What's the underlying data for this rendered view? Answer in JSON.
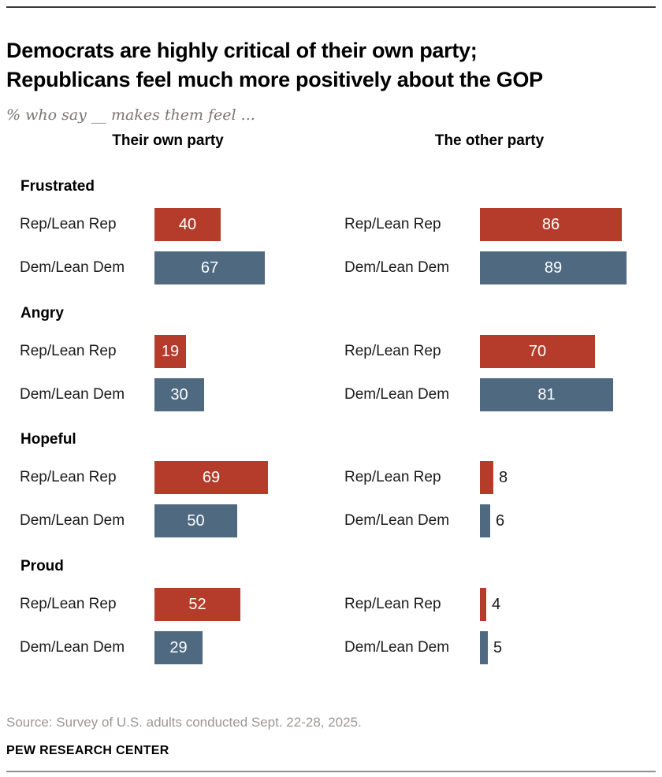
{
  "page": {
    "title_line1": "Democrats are highly critical of their own party;",
    "title_line2": "Republicans feel much more positively about the GOP",
    "subtitle": "% who say __ makes them feel ...",
    "source": "Source: Survey of U.S. adults conducted Sept. 22-28, 2025.",
    "brand": "PEW RESEARCH CENTER"
  },
  "chart_data": {
    "type": "bar",
    "orientation": "horizontal",
    "unit": "%",
    "xlim": [
      0,
      100
    ],
    "grid": false,
    "legend": "none",
    "column_headers": [
      "Their own party",
      "The other party"
    ],
    "row_labels": [
      "Rep/Lean Rep",
      "Dem/Lean Dem"
    ],
    "colors": {
      "rep_bar": "#b53c2b",
      "dem_bar": "#4f6980",
      "value_inside": "#ffffff",
      "value_outside": "#1a1a1a"
    },
    "sections": [
      {
        "emotion": "Frustrated",
        "own_party": {
          "rep": 40,
          "dem": 67
        },
        "other_party": {
          "rep": 86,
          "dem": 89
        }
      },
      {
        "emotion": "Angry",
        "own_party": {
          "rep": 19,
          "dem": 30
        },
        "other_party": {
          "rep": 70,
          "dem": 81
        }
      },
      {
        "emotion": "Hopeful",
        "own_party": {
          "rep": 69,
          "dem": 50
        },
        "other_party": {
          "rep": 8,
          "dem": 6
        }
      },
      {
        "emotion": "Proud",
        "own_party": {
          "rep": 52,
          "dem": 29
        },
        "other_party": {
          "rep": 4,
          "dem": 5
        }
      }
    ]
  }
}
